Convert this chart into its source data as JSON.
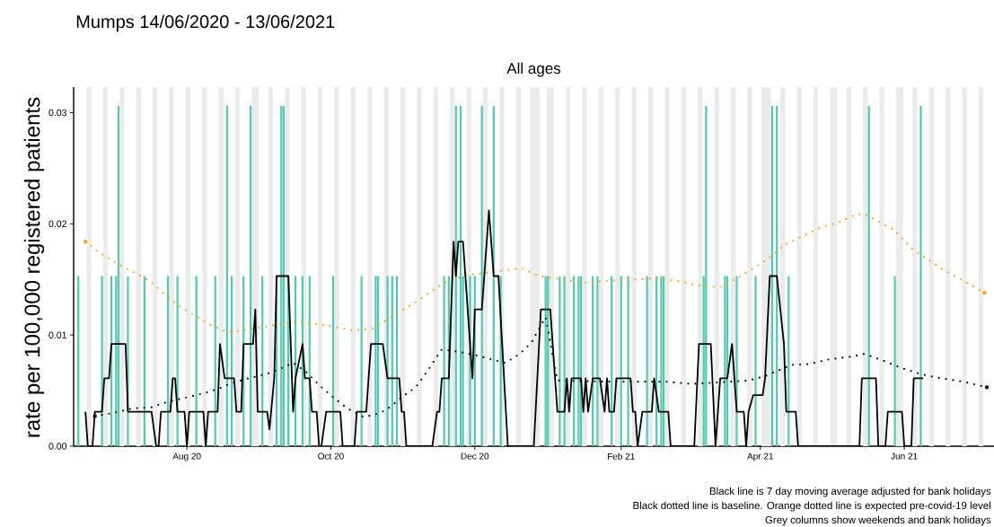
{
  "chart_data": {
    "type": "line",
    "title": "Mumps 14/06/2020 - 13/06/2021",
    "subtitle": "All ages",
    "ylabel": "rate per 100,000 registered patients",
    "annotations": [
      "Black line is 7 day moving average adjusted for bank holidays",
      "Black dotted line is baseline. Orange dotted line is expected pre-covid-19 level",
      "Grey columns show weekends and bank holidays"
    ],
    "xlim": [
      "2020-06-14",
      "2021-07-09"
    ],
    "ylim": [
      0,
      0.0323
    ],
    "xticks": [
      {
        "value": "2020-08-01",
        "label": "Aug 20"
      },
      {
        "value": "2020-10-01",
        "label": "Oct 20"
      },
      {
        "value": "2020-12-01",
        "label": "Dec 20"
      },
      {
        "value": "2021-02-01",
        "label": "Feb 21"
      },
      {
        "value": "2021-04-01",
        "label": "Apr 21"
      },
      {
        "value": "2021-06-01",
        "label": "Jun 21"
      }
    ],
    "yticks": [
      {
        "value": 0,
        "label": "0.00"
      },
      {
        "value": 0.01,
        "label": "0.01"
      },
      {
        "value": 0.02,
        "label": "0.02"
      },
      {
        "value": 0.03,
        "label": "0.03"
      }
    ],
    "series": [
      {
        "type": "bar",
        "color": "#4fc9b3",
        "x": [
          "2020-06-16",
          "2020-06-26",
          "2020-06-30",
          "2020-07-02",
          "2020-07-03",
          "2020-07-07",
          "2020-07-14",
          "2020-07-24",
          "2020-07-28",
          "2020-08-05",
          "2020-08-13",
          "2020-08-18",
          "2020-08-20",
          "2020-08-25",
          "2020-08-28",
          "2020-09-02",
          "2020-09-08",
          "2020-09-10",
          "2020-09-11",
          "2020-09-13",
          "2020-09-16",
          "2020-09-19",
          "2020-09-22",
          "2020-10-02",
          "2020-10-14",
          "2020-10-20",
          "2020-10-21",
          "2020-10-25",
          "2020-10-27",
          "2020-10-29",
          "2020-11-18",
          "2020-11-20",
          "2020-11-23",
          "2020-11-25",
          "2020-11-26",
          "2020-11-29",
          "2020-12-01",
          "2020-12-04",
          "2020-12-09",
          "2020-12-12",
          "2020-12-31",
          "2021-01-01",
          "2021-01-06",
          "2021-01-08",
          "2021-01-12",
          "2021-01-14",
          "2021-01-15",
          "2021-01-20",
          "2021-01-22",
          "2021-01-28",
          "2021-02-01",
          "2021-02-04",
          "2021-02-12",
          "2021-02-16",
          "2021-02-18",
          "2021-02-19",
          "2021-03-08",
          "2021-03-09",
          "2021-03-17",
          "2021-03-18",
          "2021-03-22",
          "2021-03-30",
          "2021-04-06",
          "2021-04-08",
          "2021-04-13",
          "2021-05-17",
          "2021-05-28",
          "2021-06-08"
        ],
        "values": [
          0.0153,
          0.0153,
          0.0153,
          0.0153,
          0.0306,
          0.0153,
          0.0153,
          0.0153,
          0.0153,
          0.0153,
          0.0153,
          0.0306,
          0.0153,
          0.0153,
          0.0306,
          0.0153,
          0.0153,
          0.0306,
          0.0306,
          0.0153,
          0.0153,
          0.0153,
          0.0153,
          0.0153,
          0.0153,
          0.0153,
          0.0153,
          0.0153,
          0.0153,
          0.0153,
          0.0153,
          0.0153,
          0.0306,
          0.0306,
          0.0153,
          0.0153,
          0.0153,
          0.0306,
          0.0306,
          0.0153,
          0.0153,
          0.0153,
          0.0153,
          0.0153,
          0.0153,
          0.0153,
          0.0153,
          0.0153,
          0.0153,
          0.0153,
          0.0153,
          0.0153,
          0.0153,
          0.0153,
          0.0153,
          0.0153,
          0.0153,
          0.0306,
          0.0153,
          0.0153,
          0.0153,
          0.0153,
          0.0306,
          0.0306,
          0.0153,
          0.0306,
          0.0153,
          0.0306
        ]
      },
      {
        "color": "#000000",
        "line_style": "dotted",
        "x": [
          "2020-06-23",
          "2020-07-01",
          "2020-07-09",
          "2020-07-17",
          "2020-07-24",
          "2020-08-01",
          "2020-08-09",
          "2020-08-16",
          "2020-08-19",
          "2020-08-27",
          "2020-09-04",
          "2020-09-11",
          "2020-09-15",
          "2020-09-21",
          "2020-09-26",
          "2020-10-02",
          "2020-10-08",
          "2020-10-15",
          "2020-10-22",
          "2020-10-26",
          "2020-10-31",
          "2020-11-06",
          "2020-11-12",
          "2020-11-17",
          "2020-11-24",
          "2020-12-03",
          "2020-12-10",
          "2020-12-14",
          "2020-12-20",
          "2020-12-25",
          "2020-12-27",
          "2020-12-31",
          "2021-01-05",
          "2021-01-28",
          "2021-02-08",
          "2021-02-20",
          "2021-03-03",
          "2021-03-27",
          "2021-04-03",
          "2021-04-14",
          "2021-04-22",
          "2021-04-30",
          "2021-05-11",
          "2021-05-15",
          "2021-05-23",
          "2021-05-30",
          "2021-06-06",
          "2021-06-14",
          "2021-06-26",
          "2021-07-06"
        ],
        "values": [
          0.0027,
          0.003,
          0.0034,
          0.0035,
          0.004,
          0.0044,
          0.0048,
          0.0053,
          0.0056,
          0.0061,
          0.0065,
          0.0071,
          0.0075,
          0.0066,
          0.0055,
          0.0044,
          0.0034,
          0.0026,
          0.003,
          0.0035,
          0.0044,
          0.0053,
          0.0071,
          0.0087,
          0.0085,
          0.0081,
          0.0077,
          0.0075,
          0.0083,
          0.0093,
          0.0101,
          0.0116,
          0.0059,
          0.0058,
          0.0058,
          0.0058,
          0.0056,
          0.0059,
          0.0063,
          0.0073,
          0.0074,
          0.0078,
          0.0081,
          0.0083,
          0.0077,
          0.0071,
          0.0066,
          0.0062,
          0.0058,
          0.0053
        ]
      },
      {
        "color": "#ffa500",
        "line_style": "dotted",
        "x": [
          "2020-06-19",
          "2020-06-25",
          "2020-07-02",
          "2020-07-09",
          "2020-07-16",
          "2020-07-22",
          "2020-07-28",
          "2020-08-04",
          "2020-08-11",
          "2020-08-18",
          "2020-08-21",
          "2020-09-02",
          "2020-09-10",
          "2020-09-18",
          "2020-09-25",
          "2020-10-03",
          "2020-10-11",
          "2020-10-19",
          "2020-10-25",
          "2020-10-31",
          "2020-11-07",
          "2020-11-13",
          "2020-11-20",
          "2020-11-28",
          "2020-12-06",
          "2020-12-13",
          "2020-12-21",
          "2020-12-28",
          "2021-01-04",
          "2021-01-16",
          "2021-01-28",
          "2021-02-08",
          "2021-02-16",
          "2021-02-24",
          "2021-03-07",
          "2021-03-15",
          "2021-03-22",
          "2021-03-29",
          "2021-04-04",
          "2021-04-12",
          "2021-04-20",
          "2021-04-27",
          "2021-05-04",
          "2021-05-11",
          "2021-05-15",
          "2021-05-21",
          "2021-05-28",
          "2021-06-04",
          "2021-06-11",
          "2021-06-18",
          "2021-06-25",
          "2021-07-05"
        ],
        "values": [
          0.0184,
          0.0174,
          0.0165,
          0.0157,
          0.0149,
          0.0138,
          0.0127,
          0.0118,
          0.0109,
          0.0103,
          0.0103,
          0.0107,
          0.011,
          0.0112,
          0.011,
          0.0107,
          0.0104,
          0.0106,
          0.0114,
          0.0122,
          0.0131,
          0.014,
          0.0149,
          0.0154,
          0.0156,
          0.0158,
          0.016,
          0.0153,
          0.0151,
          0.0147,
          0.0149,
          0.015,
          0.0151,
          0.0149,
          0.0144,
          0.0143,
          0.0151,
          0.016,
          0.0168,
          0.0182,
          0.019,
          0.0197,
          0.0201,
          0.0208,
          0.0209,
          0.0202,
          0.0194,
          0.0178,
          0.0168,
          0.0158,
          0.015,
          0.0138
        ]
      },
      {
        "color": "#000000",
        "line_style": "solid",
        "x": [
          "2020-06-19",
          "2020-06-20",
          "2020-06-22",
          "2020-06-23",
          "2020-06-26",
          "2020-06-27",
          "2020-06-29",
          "2020-06-30",
          "2020-07-06",
          "2020-07-07",
          "2020-07-17",
          "2020-07-19",
          "2020-07-20",
          "2020-07-21",
          "2020-07-25",
          "2020-07-26",
          "2020-07-27",
          "2020-07-28",
          "2020-07-31",
          "2020-08-01",
          "2020-08-02",
          "2020-08-08",
          "2020-08-09",
          "2020-08-10",
          "2020-08-14",
          "2020-08-15",
          "2020-08-17",
          "2020-08-21",
          "2020-08-22",
          "2020-08-24",
          "2020-08-25",
          "2020-08-29",
          "2020-08-30",
          "2020-08-31",
          "2020-09-04",
          "2020-09-05",
          "2020-09-07",
          "2020-09-08",
          "2020-09-13",
          "2020-09-15",
          "2020-09-16",
          "2020-09-19",
          "2020-09-20",
          "2020-09-22",
          "2020-09-23",
          "2020-09-25",
          "2020-09-26",
          "2020-09-27",
          "2020-09-29",
          "2020-10-05",
          "2020-10-06",
          "2020-10-11",
          "2020-10-12",
          "2020-10-16",
          "2020-10-18",
          "2020-10-23",
          "2020-10-25",
          "2020-10-30",
          "2020-10-31",
          "2020-11-01",
          "2020-11-02",
          "2020-11-13",
          "2020-11-15",
          "2020-11-16",
          "2020-11-17",
          "2020-11-20",
          "2020-11-21",
          "2020-11-22",
          "2020-11-23",
          "2020-11-24",
          "2020-11-26",
          "2020-11-30",
          "2020-12-01",
          "2020-12-04",
          "2020-12-07",
          "2020-12-09",
          "2020-12-11",
          "2020-12-15",
          "2020-12-26",
          "2020-12-29",
          "2021-01-02",
          "2021-01-04",
          "2021-01-05",
          "2021-01-08",
          "2021-01-09",
          "2021-01-10",
          "2021-01-11",
          "2021-01-15",
          "2021-01-16",
          "2021-01-17",
          "2021-01-18",
          "2021-01-20",
          "2021-01-23",
          "2021-01-25",
          "2021-01-26",
          "2021-01-27",
          "2021-01-29",
          "2021-01-30",
          "2021-02-05",
          "2021-02-06",
          "2021-02-07",
          "2021-02-08",
          "2021-02-10",
          "2021-02-14",
          "2021-02-15",
          "2021-02-17",
          "2021-02-21",
          "2021-02-22",
          "2021-03-04",
          "2021-03-06",
          "2021-03-11",
          "2021-03-13",
          "2021-03-15",
          "2021-03-18",
          "2021-03-20",
          "2021-03-22",
          "2021-03-25",
          "2021-03-26",
          "2021-03-27",
          "2021-03-29",
          "2021-04-02",
          "2021-04-03",
          "2021-04-05",
          "2021-04-08",
          "2021-04-11",
          "2021-04-12",
          "2021-04-16",
          "2021-04-17",
          "2021-05-13",
          "2021-05-14",
          "2021-05-20",
          "2021-05-21",
          "2021-05-24",
          "2021-05-25",
          "2021-05-31",
          "2021-06-01",
          "2021-06-04",
          "2021-06-05",
          "2021-06-09"
        ],
        "values": [
          0.0031,
          0,
          0,
          0.0031,
          0.0031,
          0.0061,
          0.0061,
          0.0092,
          0.0092,
          0.0031,
          0.0031,
          0,
          0,
          0.0031,
          0.0031,
          0.0061,
          0.0061,
          0.0031,
          0.0031,
          0,
          0.0031,
          0.0031,
          0,
          0.0031,
          0.0031,
          0.0092,
          0.0061,
          0.0061,
          0.0031,
          0.0031,
          0.0092,
          0.0092,
          0.0123,
          0.0031,
          0.0031,
          0.0015,
          0.0061,
          0.0153,
          0.0153,
          0.0031,
          0.0061,
          0.0092,
          0.0061,
          0.0061,
          0.0031,
          0.0031,
          0,
          0,
          0.0031,
          0.0031,
          0,
          0,
          0.0031,
          0.0031,
          0.0092,
          0.0092,
          0.0061,
          0.0061,
          0.0031,
          0.0031,
          0,
          0,
          0.0031,
          0.0031,
          0.0061,
          0.0061,
          0.0123,
          0.0184,
          0.0153,
          0.0184,
          0.0184,
          0.0061,
          0.0123,
          0.0123,
          0.0212,
          0.0153,
          0.0153,
          0,
          0,
          0.0123,
          0.0123,
          0.0061,
          0.0031,
          0.0031,
          0.0061,
          0.0031,
          0.0061,
          0.0061,
          0.0031,
          0.0061,
          0.0031,
          0.0061,
          0.0061,
          0.0031,
          0.0061,
          0.0031,
          0.0031,
          0.0061,
          0.0061,
          0.0031,
          0.0031,
          0,
          0.0031,
          0.0031,
          0.0061,
          0.0031,
          0.0031,
          0,
          0,
          0.0092,
          0.0092,
          0,
          0.0061,
          0.0061,
          0.0092,
          0.0031,
          0.0031,
          0,
          0.0031,
          0.0046,
          0.0046,
          0.0061,
          0.0153,
          0.0153,
          0.0092,
          0.0031,
          0.0031,
          0,
          0,
          0.0061,
          0.0061,
          0,
          0,
          0.0031,
          0.0031,
          0,
          0,
          0.0061,
          0.0061
        ]
      }
    ],
    "bands": [
      {
        "axis": "x",
        "from": "2020-06-19T12:00",
        "to": "2020-06-21T12:00",
        "color": "#ebebeb"
      },
      {
        "axis": "x",
        "from": "2020-06-26T12:00",
        "to": "2020-06-28T12:00",
        "color": "#ebebeb"
      },
      {
        "axis": "x",
        "from": "2020-07-03T12:00",
        "to": "2020-07-05T12:00",
        "color": "#ebebeb"
      },
      {
        "axis": "x",
        "from": "2020-07-10T12:00",
        "to": "2020-07-12T12:00",
        "color": "#ebebeb"
      },
      {
        "axis": "x",
        "from": "2020-07-17T12:00",
        "to": "2020-07-19T12:00",
        "color": "#ebebeb"
      },
      {
        "axis": "x",
        "from": "2020-07-24T12:00",
        "to": "2020-07-26T12:00",
        "color": "#ebebeb"
      },
      {
        "axis": "x",
        "from": "2020-07-31T12:00",
        "to": "2020-08-02T12:00",
        "color": "#ebebeb"
      },
      {
        "axis": "x",
        "from": "2020-08-07T12:00",
        "to": "2020-08-09T12:00",
        "color": "#ebebeb"
      },
      {
        "axis": "x",
        "from": "2020-08-14T12:00",
        "to": "2020-08-16T12:00",
        "color": "#ebebeb"
      },
      {
        "axis": "x",
        "from": "2020-08-21T12:00",
        "to": "2020-08-23T12:00",
        "color": "#ebebeb"
      },
      {
        "axis": "x",
        "from": "2020-08-28T12:00",
        "to": "2020-08-31T12:00",
        "color": "#ebebeb"
      },
      {
        "axis": "x",
        "from": "2020-09-04T12:00",
        "to": "2020-09-06T12:00",
        "color": "#ebebeb"
      },
      {
        "axis": "x",
        "from": "2020-09-11T12:00",
        "to": "2020-09-13T12:00",
        "color": "#ebebeb"
      },
      {
        "axis": "x",
        "from": "2020-09-18T12:00",
        "to": "2020-09-20T12:00",
        "color": "#ebebeb"
      },
      {
        "axis": "x",
        "from": "2020-09-25T12:00",
        "to": "2020-09-27T12:00",
        "color": "#ebebeb"
      },
      {
        "axis": "x",
        "from": "2020-10-02T12:00",
        "to": "2020-10-04T12:00",
        "color": "#ebebeb"
      },
      {
        "axis": "x",
        "from": "2020-10-09T12:00",
        "to": "2020-10-11T12:00",
        "color": "#ebebeb"
      },
      {
        "axis": "x",
        "from": "2020-10-16T12:00",
        "to": "2020-10-18T12:00",
        "color": "#ebebeb"
      },
      {
        "axis": "x",
        "from": "2020-10-23T12:00",
        "to": "2020-10-25T12:00",
        "color": "#ebebeb"
      },
      {
        "axis": "x",
        "from": "2020-10-30T12:00",
        "to": "2020-11-01T12:00",
        "color": "#ebebeb"
      },
      {
        "axis": "x",
        "from": "2020-11-06T12:00",
        "to": "2020-11-08T12:00",
        "color": "#ebebeb"
      },
      {
        "axis": "x",
        "from": "2020-11-13T12:00",
        "to": "2020-11-15T12:00",
        "color": "#ebebeb"
      },
      {
        "axis": "x",
        "from": "2020-11-20T12:00",
        "to": "2020-11-22T12:00",
        "color": "#ebebeb"
      },
      {
        "axis": "x",
        "from": "2020-11-27T12:00",
        "to": "2020-11-29T12:00",
        "color": "#ebebeb"
      },
      {
        "axis": "x",
        "from": "2020-12-04T12:00",
        "to": "2020-12-06T12:00",
        "color": "#ebebeb"
      },
      {
        "axis": "x",
        "from": "2020-12-11T12:00",
        "to": "2020-12-13T12:00",
        "color": "#ebebeb"
      },
      {
        "axis": "x",
        "from": "2020-12-18T12:00",
        "to": "2020-12-20T12:00",
        "color": "#ebebeb"
      },
      {
        "axis": "x",
        "from": "2020-12-24T12:00",
        "to": "2020-12-28T12:00",
        "color": "#ebebeb"
      },
      {
        "axis": "x",
        "from": "2020-12-31T12:00",
        "to": "2021-01-03T12:00",
        "color": "#ebebeb"
      },
      {
        "axis": "x",
        "from": "2021-01-08T12:00",
        "to": "2021-01-10T12:00",
        "color": "#ebebeb"
      },
      {
        "axis": "x",
        "from": "2021-01-15T12:00",
        "to": "2021-01-17T12:00",
        "color": "#ebebeb"
      },
      {
        "axis": "x",
        "from": "2021-01-22T12:00",
        "to": "2021-01-24T12:00",
        "color": "#ebebeb"
      },
      {
        "axis": "x",
        "from": "2021-01-29T12:00",
        "to": "2021-01-31T12:00",
        "color": "#ebebeb"
      },
      {
        "axis": "x",
        "from": "2021-02-05T12:00",
        "to": "2021-02-07T12:00",
        "color": "#ebebeb"
      },
      {
        "axis": "x",
        "from": "2021-02-12T12:00",
        "to": "2021-02-14T12:00",
        "color": "#ebebeb"
      },
      {
        "axis": "x",
        "from": "2021-02-19T12:00",
        "to": "2021-02-21T12:00",
        "color": "#ebebeb"
      },
      {
        "axis": "x",
        "from": "2021-02-26T12:00",
        "to": "2021-02-28T12:00",
        "color": "#ebebeb"
      },
      {
        "axis": "x",
        "from": "2021-03-05T12:00",
        "to": "2021-03-07T12:00",
        "color": "#ebebeb"
      },
      {
        "axis": "x",
        "from": "2021-03-12T12:00",
        "to": "2021-03-14T12:00",
        "color": "#ebebeb"
      },
      {
        "axis": "x",
        "from": "2021-03-19T12:00",
        "to": "2021-03-21T12:00",
        "color": "#ebebeb"
      },
      {
        "axis": "x",
        "from": "2021-03-26T12:00",
        "to": "2021-03-28T12:00",
        "color": "#ebebeb"
      },
      {
        "axis": "x",
        "from": "2021-04-01T12:00",
        "to": "2021-04-05T12:00",
        "color": "#ebebeb"
      },
      {
        "axis": "x",
        "from": "2021-04-09T12:00",
        "to": "2021-04-11T12:00",
        "color": "#ebebeb"
      },
      {
        "axis": "x",
        "from": "2021-04-16T12:00",
        "to": "2021-04-18T12:00",
        "color": "#ebebeb"
      },
      {
        "axis": "x",
        "from": "2021-04-23T12:00",
        "to": "2021-04-25T12:00",
        "color": "#ebebeb"
      },
      {
        "axis": "x",
        "from": "2021-04-30T12:00",
        "to": "2021-05-03T12:00",
        "color": "#ebebeb"
      },
      {
        "axis": "x",
        "from": "2021-05-07T12:00",
        "to": "2021-05-09T12:00",
        "color": "#ebebeb"
      },
      {
        "axis": "x",
        "from": "2021-05-14T12:00",
        "to": "2021-05-16T12:00",
        "color": "#ebebeb"
      },
      {
        "axis": "x",
        "from": "2021-05-21T12:00",
        "to": "2021-05-23T12:00",
        "color": "#ebebeb"
      },
      {
        "axis": "x",
        "from": "2021-05-28T12:00",
        "to": "2021-05-31T12:00",
        "color": "#ebebeb"
      },
      {
        "axis": "x",
        "from": "2021-06-04T12:00",
        "to": "2021-06-06T12:00",
        "color": "#ebebeb"
      },
      {
        "axis": "x",
        "from": "2021-06-11T12:00",
        "to": "2021-06-13T12:00",
        "color": "#ebebeb"
      },
      {
        "axis": "x",
        "from": "2021-06-18T12:00",
        "to": "2021-06-20T12:00",
        "color": "#ebebeb"
      },
      {
        "axis": "x",
        "from": "2021-06-25T12:00",
        "to": "2021-06-27T12:00",
        "color": "#ebebeb"
      },
      {
        "axis": "x",
        "from": "2021-07-02T12:00",
        "to": "2021-07-04T12:00",
        "color": "#ebebeb"
      }
    ]
  }
}
